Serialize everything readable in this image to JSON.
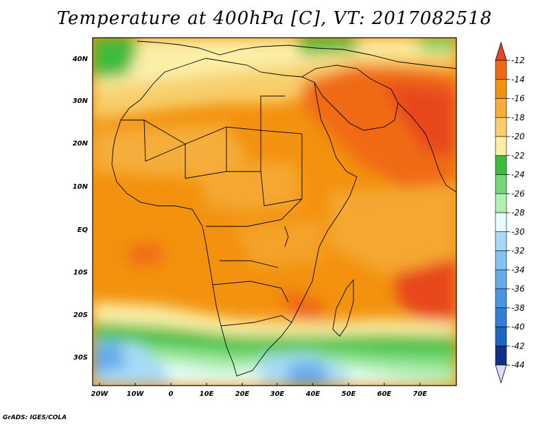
{
  "title": "Temperature at 400hPa [C], VT: 2017082518",
  "credit": "GrADS: IGES/COLA",
  "map": {
    "lon_range": [
      -23,
      80
    ],
    "lat_range": [
      -37,
      45
    ],
    "lon_ticks": [
      "20W",
      "10W",
      "0",
      "10E",
      "20E",
      "30E",
      "40E",
      "50E",
      "60E",
      "70E"
    ],
    "lat_ticks": [
      "40N",
      "30N",
      "20N",
      "10N",
      "EQ",
      "10S",
      "20S",
      "30S"
    ]
  },
  "colorbar": {
    "labels": [
      "-12",
      "-14",
      "-16",
      "-18",
      "-20",
      "-22",
      "-24",
      "-26",
      "-28",
      "-30",
      "-32",
      "-34",
      "-36",
      "-38",
      "-40",
      "-42",
      "-44"
    ],
    "colors": [
      "#e8461e",
      "#f06a14",
      "#f3920f",
      "#f5ad3b",
      "#f8cf6c",
      "#fbeea6",
      "#3cbb3c",
      "#73d873",
      "#b3f0b3",
      "#e7fdff",
      "#a8daf8",
      "#84c3f3",
      "#64acec",
      "#4896e2",
      "#2f7fd6",
      "#1d64c4",
      "#0e2f8a",
      "#dcdcf8"
    ],
    "top_color": "#e8461e",
    "bottom_color": "#dcdcf8"
  }
}
